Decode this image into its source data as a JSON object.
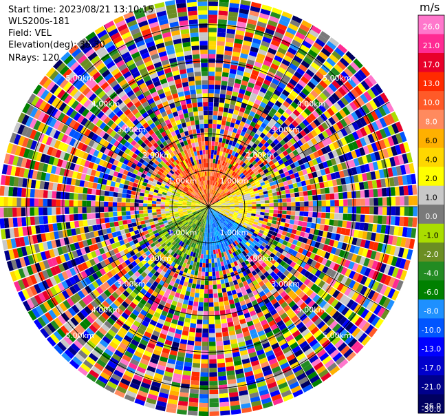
{
  "header": {
    "start_time": "Start time: 2023/08/21 13:10:15",
    "instrument": "WLS200s-181",
    "field": "Field: VEL",
    "elevation": "Elevation(deg): 35.30",
    "nrays": "NRays: 120"
  },
  "chart_data": {
    "type": "heatmap",
    "projection": "polar-ppi",
    "field": "VEL",
    "unit": "m/s",
    "nrays": 120,
    "elevation_deg": 35.3,
    "range_ring_labels": [
      {
        "value": 1.0,
        "label": "1.00km"
      },
      {
        "value": 2.0,
        "label": "2.00km"
      },
      {
        "value": 3.0,
        "label": "3.00km"
      },
      {
        "value": 4.0,
        "label": "4.00km"
      },
      {
        "value": 5.0,
        "label": "5.00km"
      }
    ],
    "max_range_km": 5.75,
    "colorbar": {
      "title": "m/s",
      "tick_labels": [
        "26.0",
        "21.0",
        "17.0",
        "13.0",
        "10.0",
        "8.0",
        "6.0",
        "4.0",
        "2.0",
        "1.0",
        "0.0",
        "-1.0",
        "-2.0",
        "-4.0",
        "-6.0",
        "-8.0",
        "-10.0",
        "-13.0",
        "-17.0",
        "-21.0",
        "-26.0",
        "-30.0"
      ],
      "colors": [
        "#ff77cc",
        "#ff2b93",
        "#e8002a",
        "#ff2a00",
        "#ff5a28",
        "#ff8a5e",
        "#ffb000",
        "#ffd700",
        "#ffff00",
        "#c8c8c8",
        "#7a7a7a",
        "#aadd00",
        "#6b8e23",
        "#228b22",
        "#008000",
        "#1e90ff",
        "#0055ff",
        "#0000ff",
        "#0000cc",
        "#00008b",
        "#000060"
      ]
    }
  }
}
